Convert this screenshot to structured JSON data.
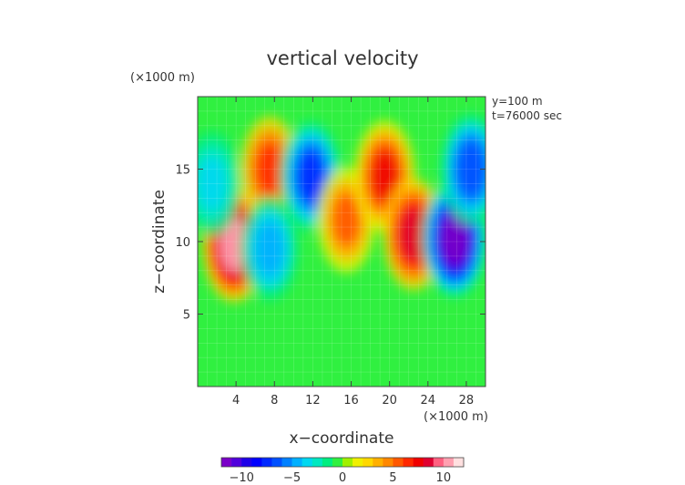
{
  "chart_data": {
    "type": "heatmap",
    "title": "vertical velocity",
    "xlabel": "x−coordinate",
    "ylabel": "z−coordinate",
    "x_unit": "(×1000 m)",
    "y_unit": "(×1000 m)",
    "annotations": [
      "y=100 m",
      "t=76000 sec"
    ],
    "xlim": [
      0,
      30
    ],
    "ylim": [
      0,
      20
    ],
    "x_ticks": [
      4,
      8,
      12,
      16,
      20,
      24,
      28
    ],
    "y_ticks": [
      5,
      10,
      15
    ],
    "x_tick_labels": [
      "4",
      "8",
      "12",
      "16",
      "20",
      "24",
      "28"
    ],
    "y_tick_labels": [
      "5",
      "10",
      "15"
    ],
    "colorbar": {
      "range": [
        -12,
        12
      ],
      "ticks": [
        -10,
        -5,
        0,
        5,
        10
      ],
      "tick_labels": [
        "−10",
        "−5",
        "0",
        "5",
        "10"
      ],
      "colors": [
        "#7a00c8",
        "#5000dc",
        "#1e00e8",
        "#0000ff",
        "#0028ff",
        "#0050ff",
        "#0080ff",
        "#00b0ff",
        "#00d8f0",
        "#00e8c0",
        "#00ee80",
        "#30f040",
        "#a0f000",
        "#f0f000",
        "#ffd800",
        "#ffb000",
        "#ff8800",
        "#ff5800",
        "#ff2800",
        "#f00000",
        "#e00030",
        "#ff6080",
        "#ffa0b0",
        "#ffe0e0"
      ]
    },
    "features": [
      {
        "x": 3.8,
        "z": 9.8,
        "w": 10,
        "kind": "updraft"
      },
      {
        "x": 7.5,
        "z": 15.0,
        "w": 6,
        "kind": "updraft"
      },
      {
        "x": 7.5,
        "z": 9.5,
        "w": -5,
        "kind": "downdraft"
      },
      {
        "x": 11.8,
        "z": 14.5,
        "w": -8,
        "kind": "downdraft"
      },
      {
        "x": 15.5,
        "z": 11.5,
        "w": 5,
        "kind": "updraft"
      },
      {
        "x": 19.5,
        "z": 14.5,
        "w": 7,
        "kind": "updraft"
      },
      {
        "x": 22.5,
        "z": 10.5,
        "w": 8,
        "kind": "updraft"
      },
      {
        "x": 26.8,
        "z": 10.2,
        "w": -12,
        "kind": "downdraft"
      },
      {
        "x": 28.5,
        "z": 15.0,
        "w": -7,
        "kind": "downdraft"
      },
      {
        "x": 1.5,
        "z": 14.0,
        "w": -4,
        "kind": "downdraft"
      }
    ]
  }
}
